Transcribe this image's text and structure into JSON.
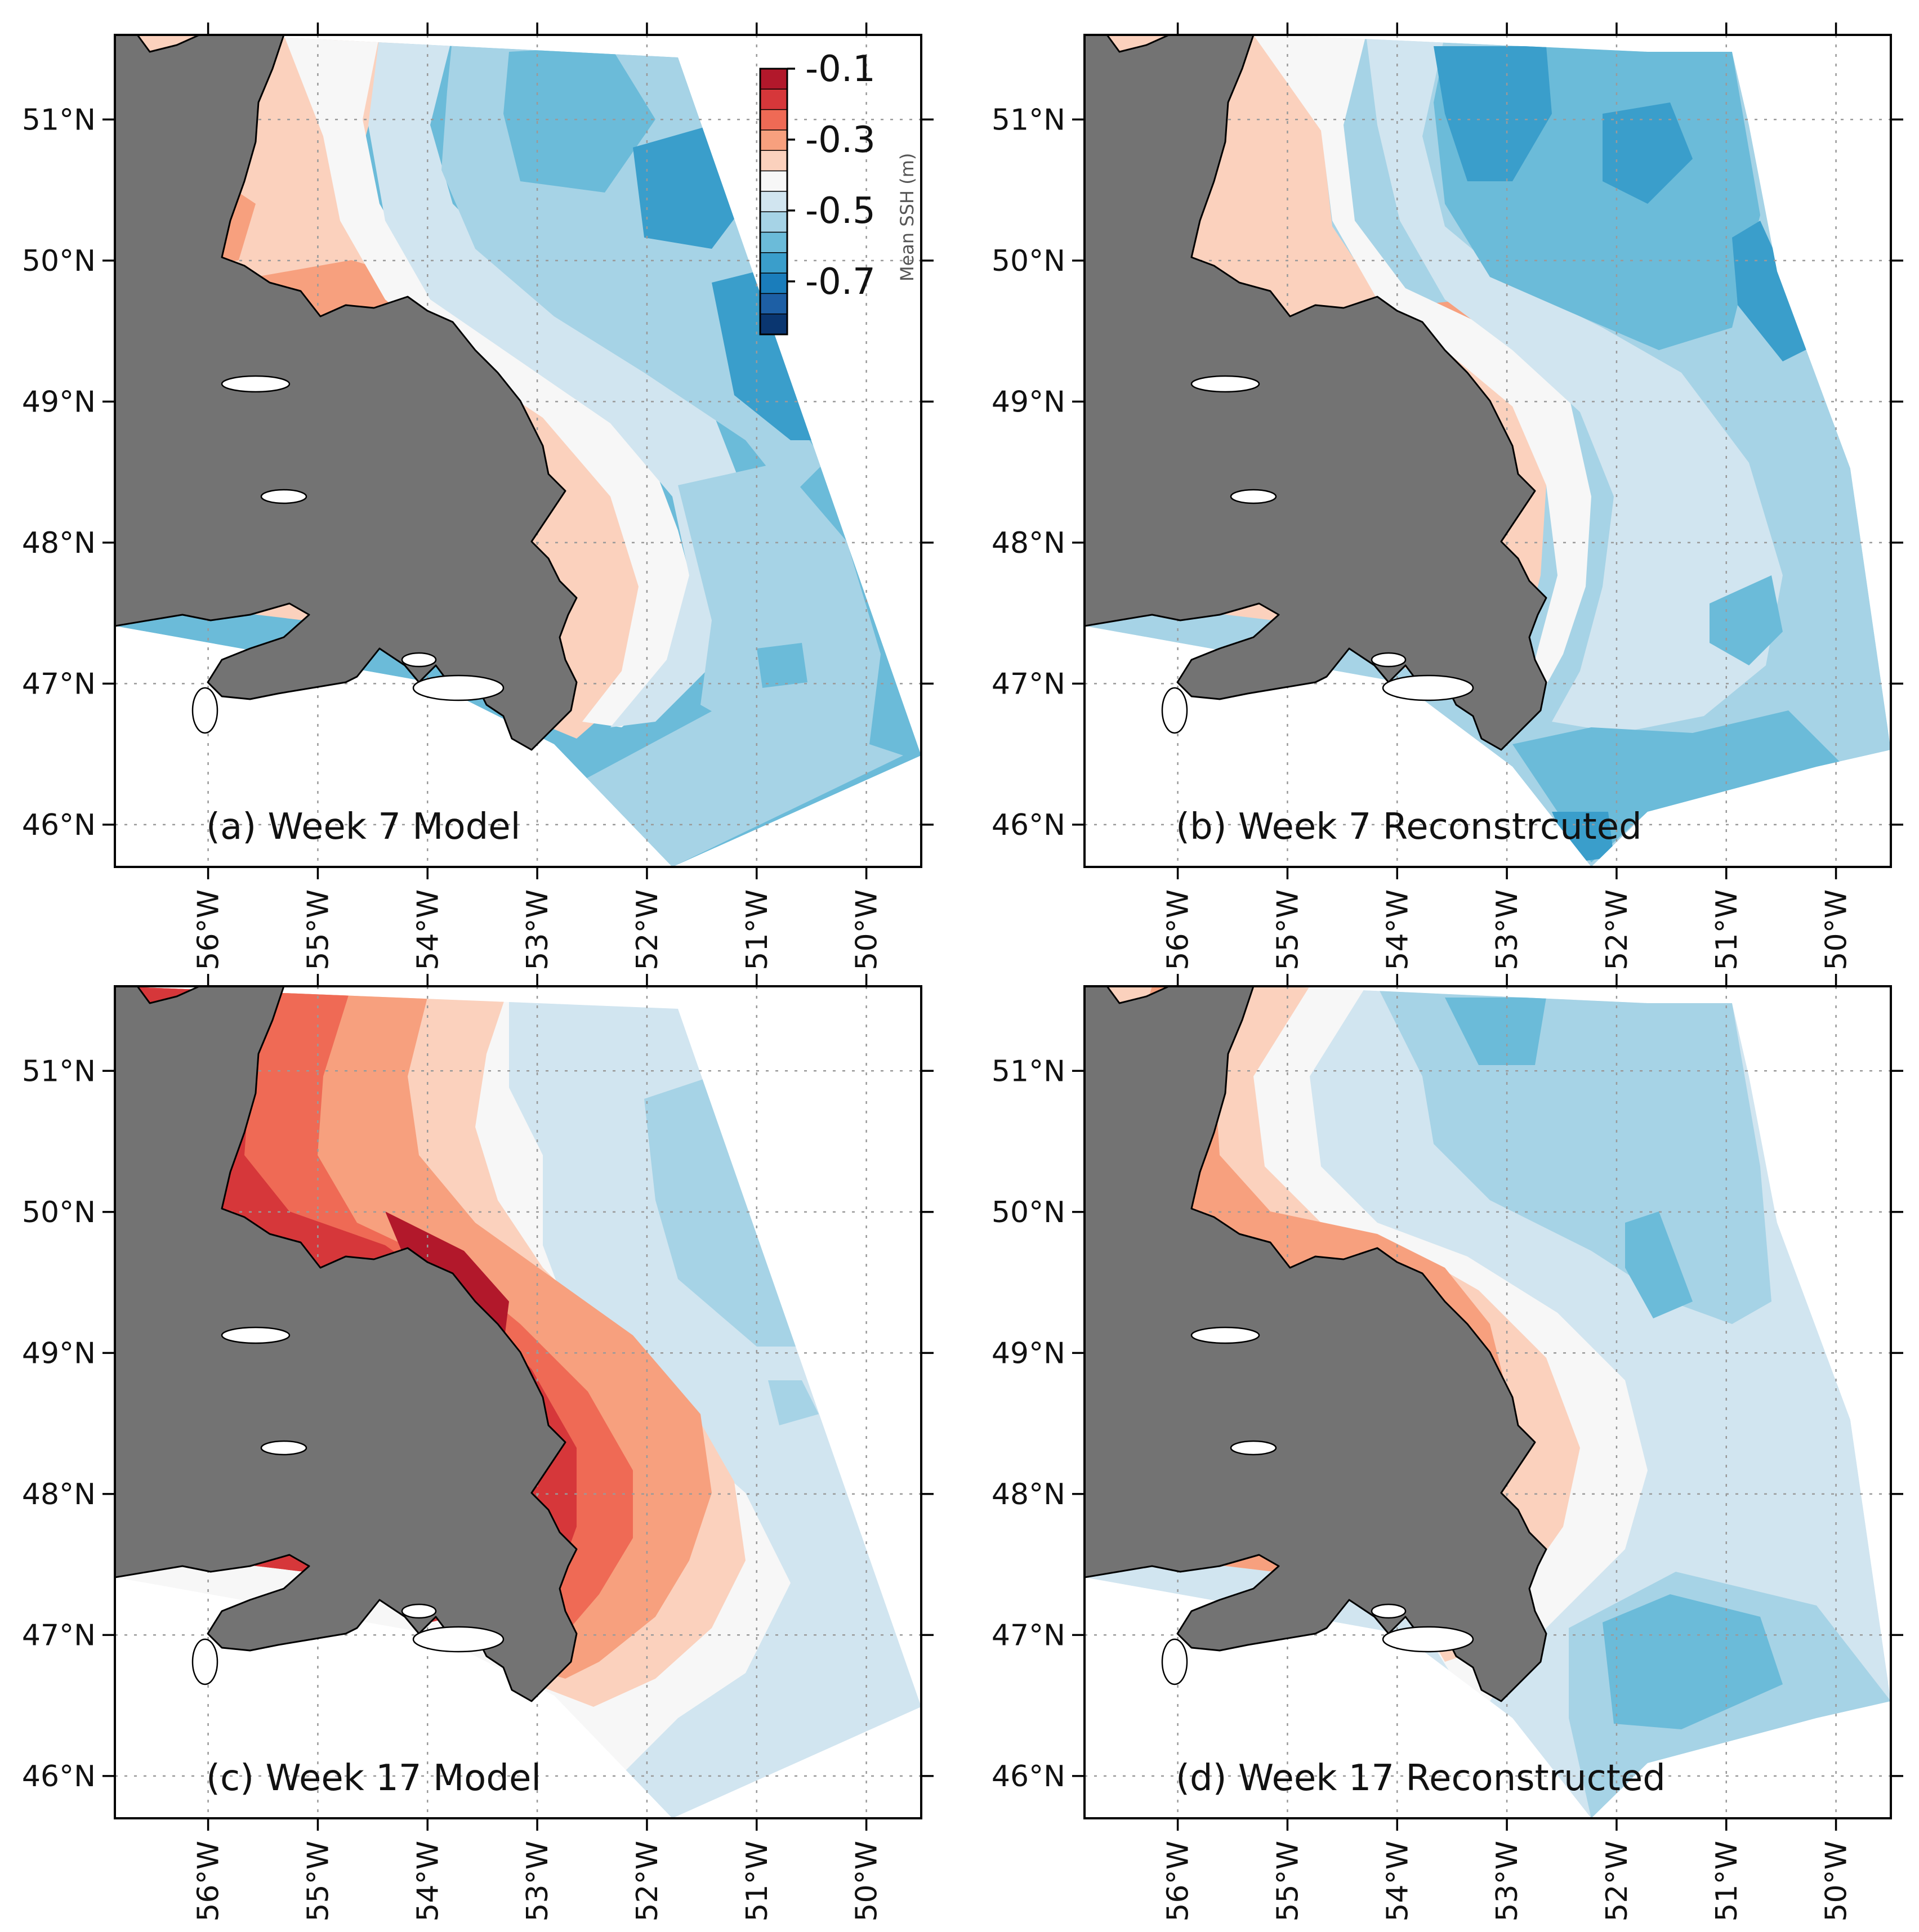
{
  "colorbar": {
    "title": "Mean SSH (m)",
    "range": [
      -0.8,
      -0.1
    ],
    "tick_labels": [
      "-0.1",
      "-0.3",
      "-0.5",
      "-0.7"
    ],
    "tick_values": [
      -0.1,
      -0.3,
      -0.5,
      -0.7
    ],
    "colors": [
      "#b2182b",
      "#d6373a",
      "#ef6a55",
      "#f7a07e",
      "#fbd1bd",
      "#f7f7f7",
      "#d1e5f0",
      "#a6d3e6",
      "#6bbbd9",
      "#3a9ecb",
      "#1a7dbb",
      "#1d5fa5",
      "#0a3670"
    ]
  },
  "axes": {
    "lat_labels": [
      "51°N",
      "50°N",
      "49°N",
      "48°N",
      "47°N",
      "46°N"
    ],
    "lat_values": [
      51,
      50,
      49,
      48,
      47,
      46
    ],
    "lon_labels": [
      "56°W",
      "55°W",
      "54°W",
      "53°W",
      "52°W",
      "51°W",
      "50°W"
    ],
    "lon_values": [
      -56,
      -55,
      -54,
      -53,
      -52,
      -51,
      -50
    ],
    "lat_range": [
      45.7,
      51.6
    ],
    "lon_range": [
      -56.85,
      -49.5
    ]
  },
  "panels": [
    {
      "id": "a",
      "label": "(a) Week 7 Model",
      "week": 7,
      "source": "Model",
      "dominant": "blue-offshore"
    },
    {
      "id": "b",
      "label": "(b) Week 7 Reconstrcuted",
      "week": 7,
      "source": "Reconstructed",
      "dominant": "blue-offshore"
    },
    {
      "id": "c",
      "label": "(c) Week 17 Model",
      "week": 17,
      "source": "Model",
      "dominant": "red-coastal"
    },
    {
      "id": "d",
      "label": "(d) Week 17 Reconstructed",
      "week": 17,
      "source": "Reconstructed",
      "dominant": "red-coastal"
    }
  ]
}
